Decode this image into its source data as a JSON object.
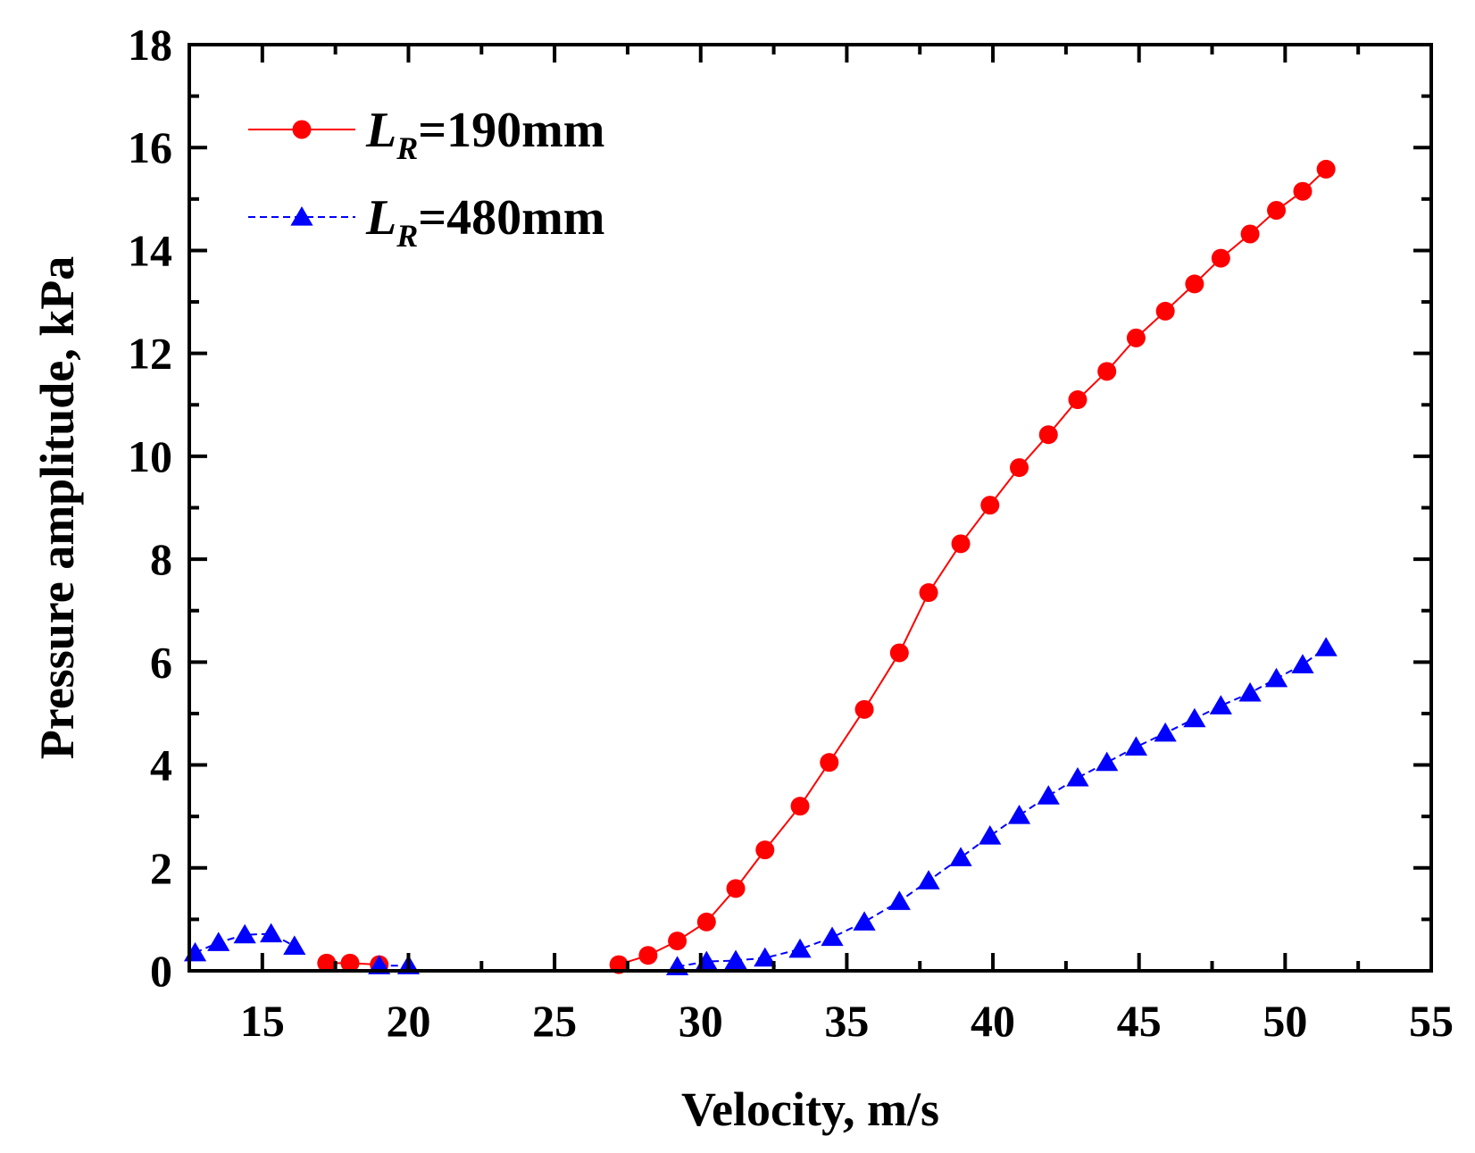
{
  "chart_data": {
    "type": "line",
    "title": "",
    "xlabel": "Velocity, m/s",
    "ylabel": "Pressure amplitude, kPa",
    "xlim": [
      12.5,
      55
    ],
    "ylim": [
      0,
      18
    ],
    "xticks": [
      15,
      20,
      25,
      30,
      35,
      40,
      45,
      50,
      55
    ],
    "xtick_labels": [
      "15",
      "20",
      "25",
      "30",
      "35",
      "40",
      "45",
      "50",
      "55"
    ],
    "yticks": [
      0,
      2,
      4,
      6,
      8,
      10,
      12,
      14,
      16,
      18
    ],
    "ytick_labels": [
      "0",
      "2",
      "4",
      "6",
      "8",
      "10",
      "12",
      "14",
      "16",
      "18"
    ],
    "grid": false,
    "legend_position": "top-left",
    "series": [
      {
        "name": "L_R=190mm",
        "legend_main": "L",
        "legend_sub": "R",
        "legend_rest": "=190mm",
        "color": "#ff0000",
        "marker": "circle",
        "line_style": "solid",
        "segments": [
          {
            "x": [
              17.2,
              18.0,
              19.0
            ],
            "y": [
              0.15,
              0.15,
              0.12
            ]
          },
          {
            "x": [
              27.2,
              28.2,
              29.2,
              30.2,
              31.2,
              32.2,
              33.4,
              34.4,
              35.6,
              36.8,
              37.8,
              38.9,
              39.9,
              40.9,
              41.9,
              42.9,
              43.9,
              44.9,
              45.9,
              46.9,
              47.8,
              48.8,
              49.7,
              50.6,
              51.4
            ],
            "y": [
              0.12,
              0.3,
              0.58,
              0.95,
              1.6,
              2.35,
              3.2,
              4.05,
              5.08,
              6.18,
              7.35,
              8.3,
              9.05,
              9.78,
              10.42,
              11.1,
              11.65,
              12.3,
              12.82,
              13.35,
              13.85,
              14.32,
              14.78,
              15.15,
              15.58
            ]
          }
        ]
      },
      {
        "name": "L_R=480mm",
        "legend_main": "L",
        "legend_sub": "R",
        "legend_rest": "=480mm",
        "color": "#0000ff",
        "marker": "triangle",
        "line_style": "dashed",
        "segments": [
          {
            "x": [
              12.7,
              13.5,
              14.4,
              15.3,
              16.1
            ],
            "y": [
              0.35,
              0.55,
              0.7,
              0.72,
              0.48
            ]
          },
          {
            "x": [
              19.0,
              20.0
            ],
            "y": [
              0.1,
              0.1
            ]
          },
          {
            "x": [
              29.2,
              30.2,
              31.2,
              32.2,
              33.4,
              34.5,
              35.6,
              36.8,
              37.8,
              38.9,
              39.9,
              40.9,
              41.9,
              42.9,
              43.9,
              44.9,
              45.9,
              46.9,
              47.8,
              48.8,
              49.7,
              50.6,
              51.4
            ],
            "y": [
              0.08,
              0.18,
              0.2,
              0.25,
              0.42,
              0.65,
              0.95,
              1.35,
              1.75,
              2.2,
              2.62,
              3.02,
              3.4,
              3.75,
              4.05,
              4.35,
              4.62,
              4.9,
              5.15,
              5.4,
              5.68,
              5.95,
              6.28
            ]
          }
        ]
      }
    ]
  }
}
